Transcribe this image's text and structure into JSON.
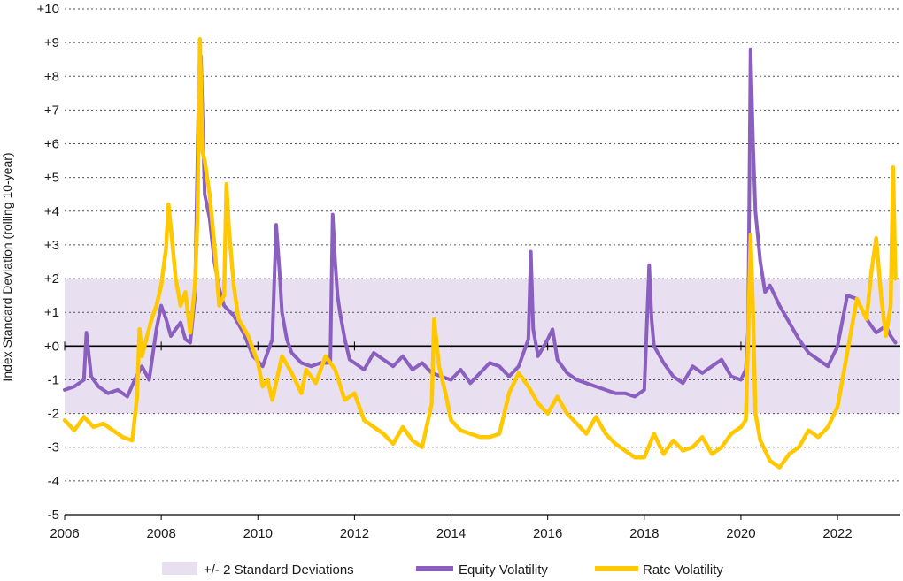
{
  "chart_data": {
    "type": "line",
    "title": "",
    "xlabel": "",
    "ylabel": "Index Standard Deviation (rolling 10-year)",
    "xlim": [
      2006,
      2023.3
    ],
    "ylim": [
      -5,
      10
    ],
    "x_ticks": [
      2006,
      2008,
      2010,
      2012,
      2014,
      2016,
      2018,
      2020,
      2022
    ],
    "x_tick_labels": [
      "2006",
      "2008",
      "2010",
      "2012",
      "2014",
      "2016",
      "2018",
      "2020",
      "2022"
    ],
    "y_ticks": [
      10,
      9,
      8,
      7,
      6,
      5,
      4,
      3,
      2,
      1,
      0,
      -1,
      -2,
      -3,
      -4,
      -5
    ],
    "y_tick_labels": [
      "+10",
      "+9",
      "+8",
      "+7",
      "+6",
      "+5",
      "+4",
      "+3",
      "+2",
      "+1",
      "+0",
      "-1",
      "-2",
      "-3",
      "-4",
      "-5"
    ],
    "grid": "horizontal dotted",
    "band": {
      "name": "+/- 2 Standard Deviations",
      "lower": -2,
      "upper": 2,
      "color": "#e8e0f0"
    },
    "legend_position": "bottom",
    "series": [
      {
        "name": "Equity Volatility",
        "color": "#8b5fbf",
        "x": [
          2006.0,
          2006.2,
          2006.4,
          2006.45,
          2006.55,
          2006.7,
          2006.9,
          2007.1,
          2007.3,
          2007.45,
          2007.6,
          2007.75,
          2007.9,
          2008.0,
          2008.1,
          2008.2,
          2008.3,
          2008.4,
          2008.5,
          2008.6,
          2008.7,
          2008.78,
          2008.82,
          2008.86,
          2008.9,
          2009.0,
          2009.1,
          2009.2,
          2009.3,
          2009.5,
          2009.7,
          2009.9,
          2010.1,
          2010.3,
          2010.38,
          2010.45,
          2010.5,
          2010.6,
          2010.7,
          2010.9,
          2011.1,
          2011.3,
          2011.5,
          2011.55,
          2011.6,
          2011.65,
          2011.7,
          2011.8,
          2011.9,
          2012.0,
          2012.2,
          2012.4,
          2012.6,
          2012.8,
          2013.0,
          2013.2,
          2013.4,
          2013.6,
          2013.8,
          2014.0,
          2014.2,
          2014.4,
          2014.6,
          2014.8,
          2015.0,
          2015.2,
          2015.4,
          2015.6,
          2015.65,
          2015.7,
          2015.8,
          2016.0,
          2016.1,
          2016.2,
          2016.4,
          2016.6,
          2016.8,
          2017.0,
          2017.2,
          2017.4,
          2017.6,
          2017.8,
          2018.0,
          2018.1,
          2018.15,
          2018.2,
          2018.4,
          2018.6,
          2018.8,
          2019.0,
          2019.2,
          2019.4,
          2019.6,
          2019.8,
          2020.0,
          2020.1,
          2020.15,
          2020.2,
          2020.25,
          2020.3,
          2020.4,
          2020.5,
          2020.6,
          2020.8,
          2021.0,
          2021.2,
          2021.4,
          2021.6,
          2021.8,
          2022.0,
          2022.2,
          2022.4,
          2022.6,
          2022.8,
          2023.0,
          2023.1,
          2023.2
        ],
        "values": [
          -1.3,
          -1.2,
          -1.0,
          0.4,
          -0.9,
          -1.2,
          -1.4,
          -1.3,
          -1.5,
          -1.0,
          -0.6,
          -1.0,
          0.5,
          1.2,
          0.8,
          0.3,
          0.5,
          0.7,
          0.2,
          0.1,
          1.5,
          8.0,
          8.6,
          6.5,
          4.5,
          3.8,
          2.5,
          1.7,
          1.2,
          0.9,
          0.4,
          -0.3,
          -0.6,
          0.2,
          3.6,
          2.2,
          1.0,
          0.2,
          -0.2,
          -0.5,
          -0.6,
          -0.5,
          -0.5,
          3.9,
          2.5,
          1.5,
          1.0,
          0.2,
          -0.4,
          -0.5,
          -0.7,
          -0.2,
          -0.4,
          -0.6,
          -0.3,
          -0.7,
          -0.5,
          -0.8,
          -0.9,
          -1.0,
          -0.7,
          -1.1,
          -0.8,
          -0.5,
          -0.6,
          -0.9,
          -0.6,
          0.2,
          2.8,
          0.5,
          -0.3,
          0.2,
          0.5,
          -0.4,
          -0.8,
          -1.0,
          -1.1,
          -1.2,
          -1.3,
          -1.4,
          -1.4,
          -1.5,
          -1.3,
          2.4,
          0.8,
          0.0,
          -0.5,
          -0.9,
          -1.1,
          -0.6,
          -0.8,
          -0.6,
          -0.4,
          -0.9,
          -1.0,
          -0.7,
          0.5,
          8.8,
          6.0,
          4.0,
          2.5,
          1.6,
          1.8,
          1.2,
          0.7,
          0.2,
          -0.2,
          -0.4,
          -0.6,
          0.0,
          1.5,
          1.4,
          0.8,
          0.4,
          0.6,
          0.3,
          0.1
        ]
      },
      {
        "name": "Rate Volatility",
        "color": "#ffc800",
        "x": [
          2006.0,
          2006.2,
          2006.4,
          2006.6,
          2006.8,
          2007.0,
          2007.2,
          2007.4,
          2007.5,
          2007.55,
          2007.6,
          2007.8,
          2007.9,
          2008.0,
          2008.1,
          2008.15,
          2008.2,
          2008.3,
          2008.4,
          2008.5,
          2008.6,
          2008.7,
          2008.75,
          2008.8,
          2008.85,
          2008.9,
          2009.0,
          2009.1,
          2009.2,
          2009.3,
          2009.35,
          2009.4,
          2009.5,
          2009.6,
          2009.8,
          2010.0,
          2010.1,
          2010.2,
          2010.3,
          2010.5,
          2010.7,
          2010.9,
          2011.0,
          2011.2,
          2011.4,
          2011.6,
          2011.8,
          2012.0,
          2012.2,
          2012.4,
          2012.6,
          2012.8,
          2013.0,
          2013.2,
          2013.4,
          2013.6,
          2013.65,
          2013.75,
          2013.9,
          2014.0,
          2014.2,
          2014.4,
          2014.6,
          2014.8,
          2015.0,
          2015.2,
          2015.4,
          2015.6,
          2015.8,
          2016.0,
          2016.2,
          2016.4,
          2016.6,
          2016.8,
          2017.0,
          2017.2,
          2017.4,
          2017.6,
          2017.8,
          2018.0,
          2018.2,
          2018.4,
          2018.6,
          2018.8,
          2019.0,
          2019.2,
          2019.4,
          2019.6,
          2019.8,
          2020.0,
          2020.1,
          2020.15,
          2020.2,
          2020.25,
          2020.3,
          2020.4,
          2020.6,
          2020.8,
          2021.0,
          2021.2,
          2021.4,
          2021.6,
          2021.8,
          2022.0,
          2022.2,
          2022.4,
          2022.6,
          2022.7,
          2022.8,
          2022.9,
          2023.0,
          2023.1,
          2023.15,
          2023.2
        ],
        "values": [
          -2.2,
          -2.5,
          -2.1,
          -2.4,
          -2.3,
          -2.5,
          -2.7,
          -2.8,
          -1.5,
          0.5,
          -0.3,
          0.8,
          1.2,
          1.8,
          2.9,
          4.2,
          3.5,
          2.0,
          1.2,
          1.6,
          0.4,
          1.8,
          3.8,
          9.1,
          5.8,
          5.5,
          4.5,
          3.0,
          1.2,
          1.5,
          4.8,
          3.5,
          1.8,
          0.8,
          0.3,
          -0.5,
          -1.2,
          -1.0,
          -1.6,
          -0.3,
          -0.8,
          -1.4,
          -0.7,
          -1.1,
          -0.3,
          -0.7,
          -1.6,
          -1.4,
          -2.2,
          -2.4,
          -2.6,
          -2.9,
          -2.4,
          -2.8,
          -3.0,
          -1.7,
          0.8,
          -0.6,
          -1.5,
          -2.2,
          -2.5,
          -2.6,
          -2.7,
          -2.7,
          -2.6,
          -1.4,
          -0.8,
          -1.2,
          -1.7,
          -2.0,
          -1.5,
          -2.0,
          -2.3,
          -2.6,
          -2.1,
          -2.6,
          -2.9,
          -3.1,
          -3.3,
          -3.3,
          -2.6,
          -3.2,
          -2.8,
          -3.1,
          -3.0,
          -2.7,
          -3.2,
          -3.0,
          -2.6,
          -2.4,
          -2.2,
          0.2,
          3.3,
          1.0,
          -2.0,
          -2.8,
          -3.4,
          -3.6,
          -3.2,
          -3.0,
          -2.5,
          -2.7,
          -2.4,
          -1.8,
          -0.2,
          1.4,
          0.8,
          2.2,
          3.2,
          1.5,
          0.3,
          1.2,
          5.3,
          2.0
        ]
      }
    ]
  }
}
